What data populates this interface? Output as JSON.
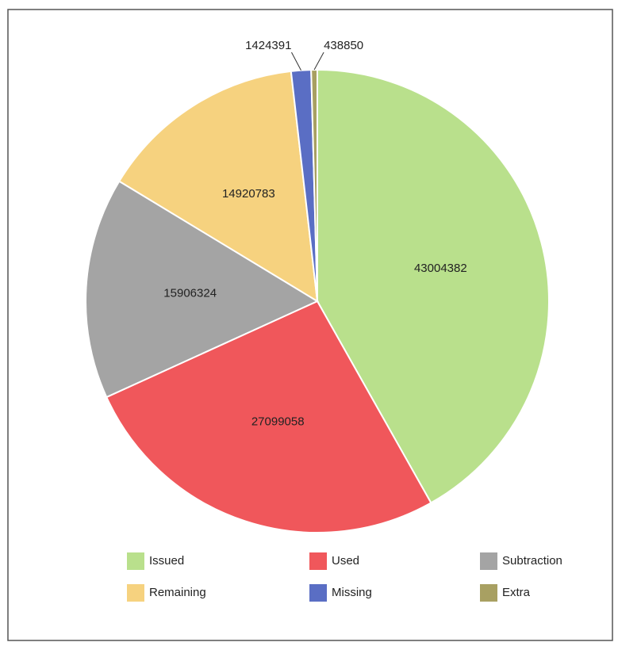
{
  "chart_data": {
    "type": "pie",
    "categories": [
      "Issued",
      "Used",
      "Subtraction",
      "Remaining",
      "Missing",
      "Extra"
    ],
    "values": [
      43004382,
      27099058,
      15906324,
      14920783,
      1424391,
      438850
    ],
    "colors": [
      "#b9e08c",
      "#f0575b",
      "#a4a4a4",
      "#f6d27f",
      "#5a6ec4",
      "#a8a062"
    ],
    "legend": "bottom"
  }
}
